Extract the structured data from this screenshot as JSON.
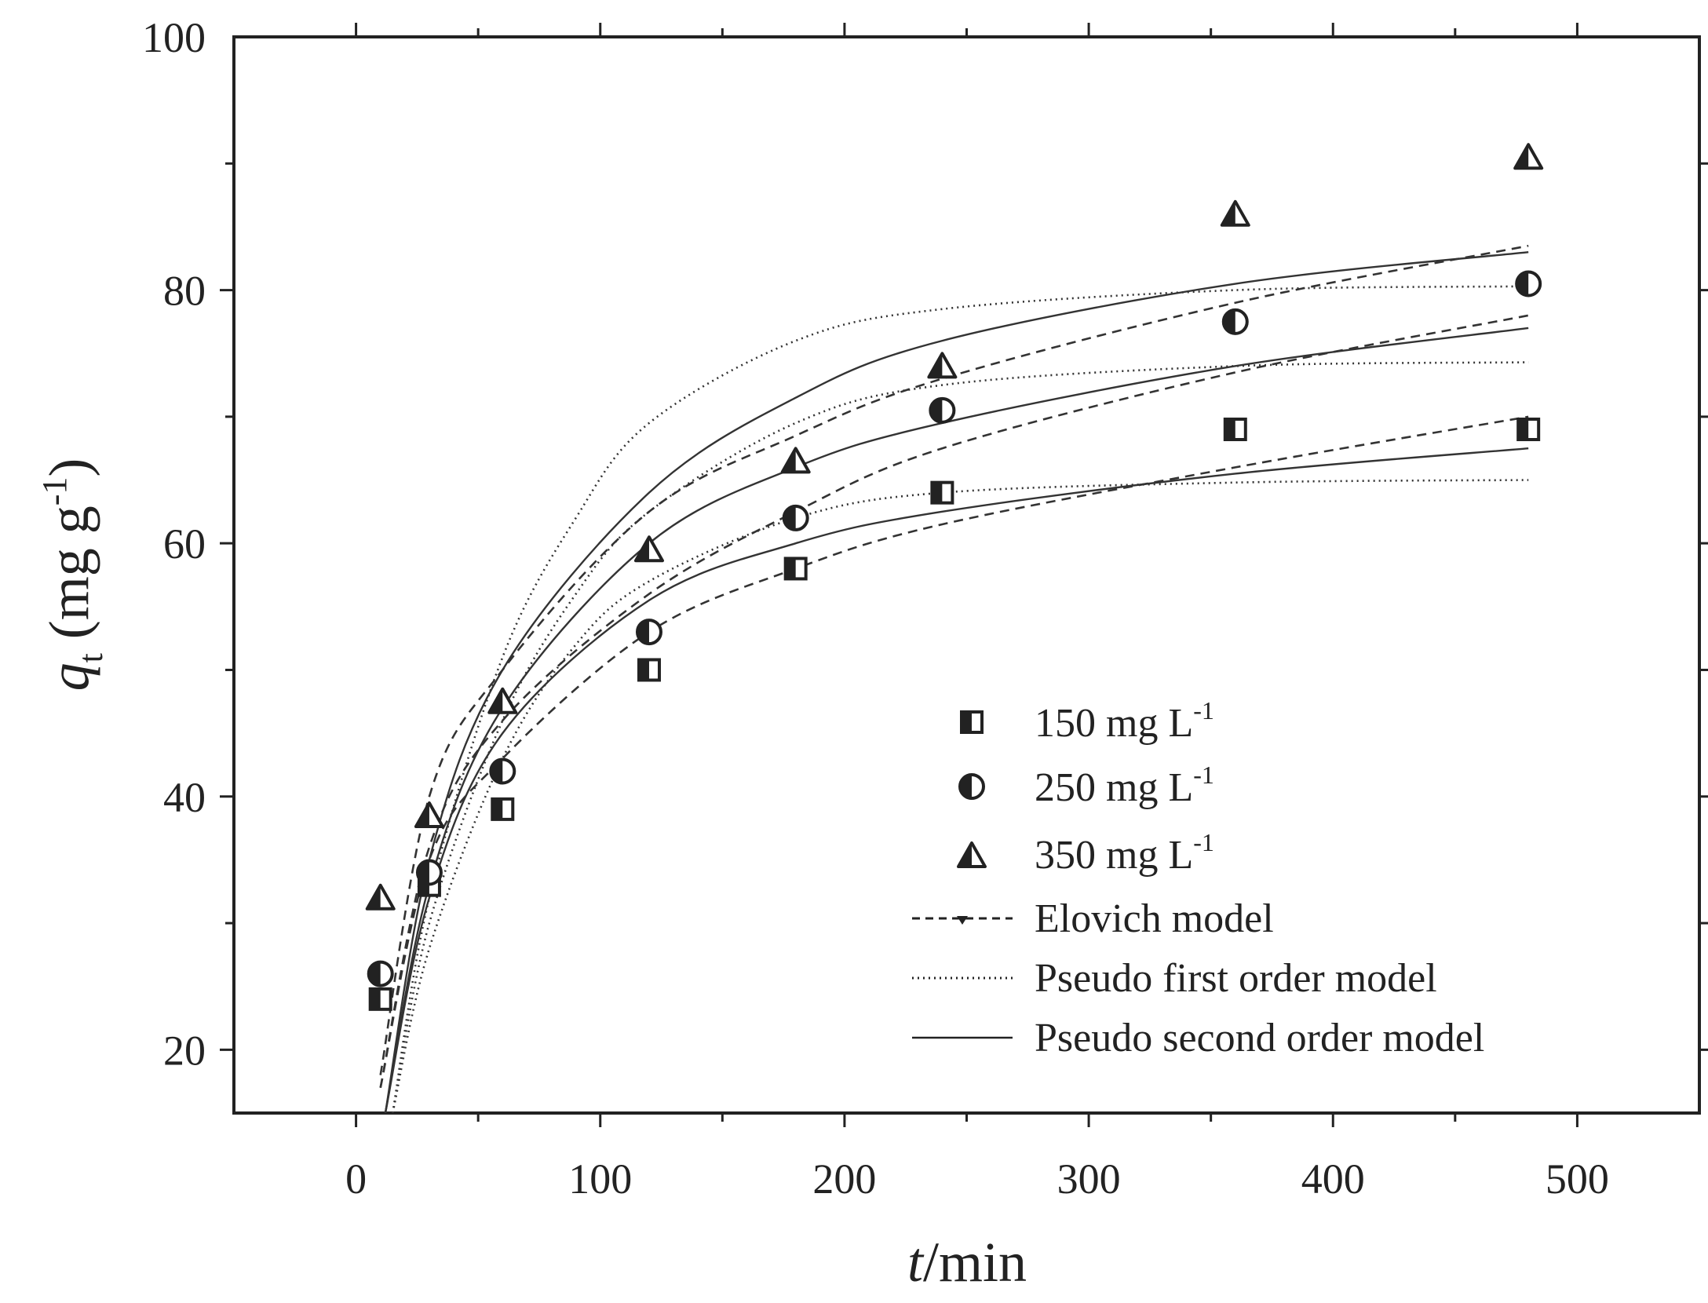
{
  "chart_data": {
    "type": "scatter",
    "title": "",
    "xlabel": {
      "italic": "t",
      "rest": "/min"
    },
    "ylabel": {
      "italic": "q",
      "sub": "t",
      "rest": " (mg g",
      "sup": "-1",
      "close": ")"
    },
    "xlim": [
      -50,
      550
    ],
    "ylim": [
      15,
      100
    ],
    "x_ticks": [
      0,
      100,
      200,
      300,
      400,
      500
    ],
    "x_tick_labels": [
      "0",
      "100",
      "200",
      "300",
      "400",
      "500"
    ],
    "y_ticks": [
      20,
      40,
      60,
      80,
      100
    ],
    "y_tick_labels": [
      "20",
      "40",
      "60",
      "80",
      "100"
    ],
    "grid": false,
    "legend_position": "bottom-right",
    "series": [
      {
        "name": "150 mg L",
        "sup": "-1",
        "marker": "square-half",
        "x": [
          10,
          30,
          60,
          120,
          180,
          240,
          360,
          480
        ],
        "y": [
          24,
          33,
          39,
          50,
          58,
          64,
          69,
          69
        ]
      },
      {
        "name": "250 mg L",
        "sup": "-1",
        "marker": "circle-half",
        "x": [
          10,
          30,
          60,
          120,
          180,
          240,
          360,
          480
        ],
        "y": [
          26,
          34,
          42,
          53,
          62,
          70.5,
          77.5,
          80.5
        ]
      },
      {
        "name": "350 mg L",
        "sup": "-1",
        "marker": "triangle-half",
        "x": [
          10,
          30,
          60,
          120,
          180,
          240,
          360,
          480
        ],
        "y": [
          32,
          38.5,
          47.5,
          59.5,
          66.5,
          74,
          86,
          90.5
        ]
      }
    ],
    "models": [
      {
        "name": "Elovich model",
        "style": "dashed",
        "curves": [
          {
            "x": [
              10,
              30,
              60,
              120,
              180,
              240,
              360,
              480
            ],
            "y": [
              17,
              35,
              43,
              53,
              58,
              61.5,
              66,
              70
            ]
          },
          {
            "x": [
              10,
              30,
              60,
              120,
              180,
              240,
              360,
              480
            ],
            "y": [
              17,
              36,
              46,
              56,
              62.5,
              67.5,
              73.5,
              78
            ]
          },
          {
            "x": [
              10,
              30,
              60,
              120,
              180,
              240,
              360,
              480
            ],
            "y": [
              18,
              40,
              50,
              62.5,
              68.5,
              73,
              79,
              83.5
            ]
          }
        ]
      },
      {
        "name": "Pseudo first order model",
        "style": "dotted",
        "curves": [
          {
            "x": [
              15,
              30,
              60,
              90,
              120,
              180,
              240,
              360,
              480
            ],
            "y": [
              15,
              28,
              43,
              52,
              57,
              62,
              64,
              64.8,
              65
            ]
          },
          {
            "x": [
              15,
              30,
              60,
              90,
              120,
              180,
              240,
              360,
              480
            ],
            "y": [
              15,
              30,
              46,
              56,
              62.5,
              69.5,
              72.5,
              74,
              74.3
            ]
          },
          {
            "x": [
              15,
              30,
              60,
              90,
              120,
              180,
              240,
              360,
              480
            ],
            "y": [
              15,
              32,
              51,
              62,
              69.5,
              76,
              78.5,
              80,
              80.3
            ]
          }
        ]
      },
      {
        "name": "Pseudo second order model",
        "style": "solid",
        "curves": [
          {
            "x": [
              12,
              30,
              60,
              120,
              180,
              240,
              360,
              480
            ],
            "y": [
              15,
              32,
              45,
              55.5,
              60,
              62.5,
              65.5,
              67.5
            ]
          },
          {
            "x": [
              12,
              30,
              60,
              120,
              180,
              240,
              360,
              480
            ],
            "y": [
              15,
              33,
              47,
              60,
              66,
              69.5,
              74,
              77
            ]
          },
          {
            "x": [
              12,
              30,
              60,
              120,
              180,
              240,
              360,
              480
            ],
            "y": [
              15,
              35,
              50,
              64,
              71.5,
              76,
              80.5,
              83
            ]
          }
        ]
      }
    ]
  }
}
